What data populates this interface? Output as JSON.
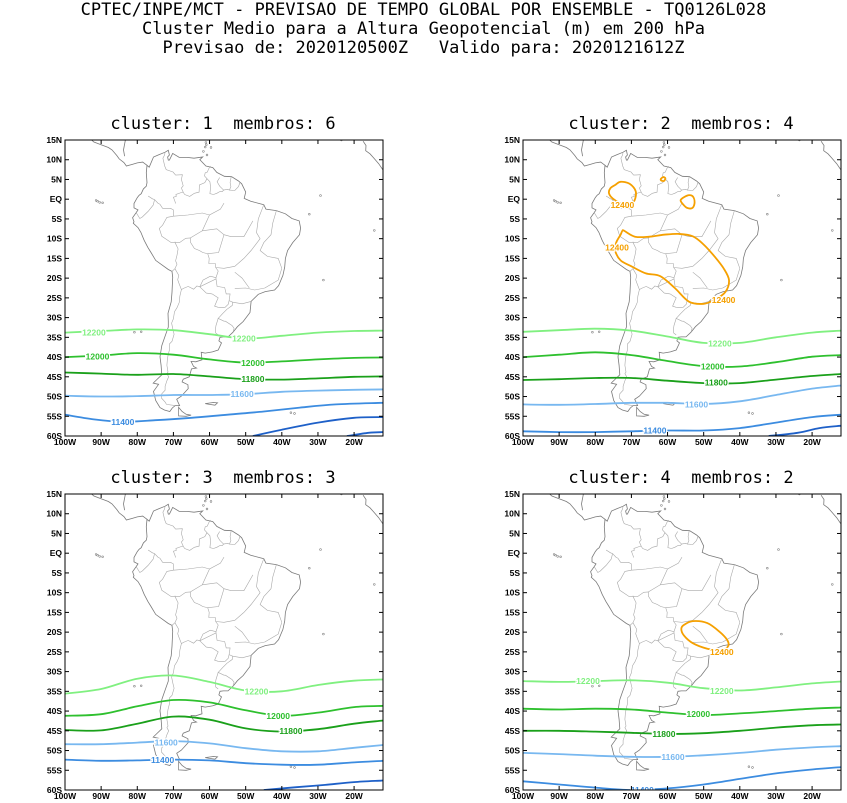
{
  "header": {
    "line1": "CPTEC/INPE/MCT - PREVISAO DE TEMPO GLOBAL POR ENSEMBLE - TQ0126L028",
    "line2": "Cluster Medio para a Altura Geopotencial (m) em 200 hPa",
    "line3": "Previsao de: 2020120500Z   Valido para: 2020121612Z"
  },
  "axes": {
    "lat_labels": [
      "15N",
      "10N",
      "5N",
      "EQ",
      "5S",
      "10S",
      "15S",
      "20S",
      "25S",
      "30S",
      "35S",
      "40S",
      "45S",
      "50S",
      "55S",
      "60S"
    ],
    "lon_labels": [
      "100W",
      "90W",
      "80W",
      "70W",
      "60W",
      "50W",
      "40W",
      "30W",
      "20W"
    ]
  },
  "colors": {
    "c12400": "#f5a000",
    "c12200": "#80f080",
    "c12000": "#2ec02e",
    "c11800": "#1aa01a",
    "c11600": "#78b8f0",
    "c11400": "#3c8ce0",
    "c11200": "#1e60c8",
    "coast": "#7a7a7a"
  },
  "panels": [
    {
      "title": "cluster: 1  membros: 6",
      "labels": [
        {
          "text": "12200",
          "level": "c12200",
          "lon": -92,
          "lat": -33.8
        },
        {
          "text": "12200",
          "level": "c12200",
          "lon": -50.5,
          "lat": -35.3
        },
        {
          "text": "12000",
          "level": "c12000",
          "lon": -91,
          "lat": -39.8
        },
        {
          "text": "12000",
          "level": "c12000",
          "lon": -48,
          "lat": -41.5
        },
        {
          "text": "11800",
          "level": "c11800",
          "lon": -48,
          "lat": -45.6
        },
        {
          "text": "11600",
          "level": "c11600",
          "lon": -51,
          "lat": -49.4
        },
        {
          "text": "11400",
          "level": "c11400",
          "lon": -84,
          "lat": -56.4
        }
      ],
      "contours": [
        {
          "level": "c12200",
          "lon": [
            -100,
            -90,
            -80,
            -70,
            -60,
            -50,
            -40,
            -30,
            -20,
            -12
          ],
          "lat": [
            -33.8,
            -33.4,
            -33.0,
            -33.2,
            -34.2,
            -35.3,
            -34.6,
            -33.8,
            -33.4,
            -33.3
          ]
        },
        {
          "level": "c12000",
          "lon": [
            -100,
            -90,
            -80,
            -70,
            -60,
            -50,
            -40,
            -30,
            -20,
            -12
          ],
          "lat": [
            -40.0,
            -39.6,
            -39.0,
            -39.4,
            -40.6,
            -41.4,
            -41.1,
            -40.6,
            -40.2,
            -40.1
          ]
        },
        {
          "level": "c11800",
          "lon": [
            -100,
            -90,
            -80,
            -70,
            -60,
            -50,
            -40,
            -30,
            -20,
            -12
          ],
          "lat": [
            -43.9,
            -44.2,
            -44.5,
            -44.3,
            -44.9,
            -45.6,
            -45.7,
            -45.4,
            -45.0,
            -44.9
          ]
        },
        {
          "level": "c11600",
          "lon": [
            -100,
            -90,
            -80,
            -70,
            -60,
            -50,
            -40,
            -30,
            -20,
            -12
          ],
          "lat": [
            -49.8,
            -50.0,
            -49.9,
            -49.6,
            -49.6,
            -49.4,
            -48.8,
            -48.5,
            -48.3,
            -48.2
          ]
        },
        {
          "level": "c11400",
          "lon": [
            -100,
            -92,
            -84,
            -75,
            -65,
            -55,
            -45,
            -35,
            -25,
            -12
          ],
          "lat": [
            -54.6,
            -55.8,
            -56.4,
            -56.0,
            -55.4,
            -54.6,
            -53.8,
            -52.8,
            -52.0,
            -51.6
          ]
        },
        {
          "level": "c11200",
          "lon": [
            -48,
            -40,
            -30,
            -20,
            -12
          ],
          "lat": [
            -60,
            -58.4,
            -56.6,
            -55.4,
            -55.2
          ]
        },
        {
          "level": "c11200",
          "lon": [
            -22,
            -16,
            -12
          ],
          "lat": [
            -60,
            -59.2,
            -59.0
          ]
        }
      ]
    },
    {
      "title": "cluster: 2  membros: 4",
      "labels": [
        {
          "text": "12400",
          "level": "c12400",
          "lon": -72.5,
          "lat": -1.5
        },
        {
          "text": "12400",
          "level": "c12400",
          "lon": -74,
          "lat": -12.3
        },
        {
          "text": "12400",
          "level": "c12400",
          "lon": -44.5,
          "lat": -25.6
        },
        {
          "text": "12200",
          "level": "c12200",
          "lon": -45.5,
          "lat": -36.6
        },
        {
          "text": "12000",
          "level": "c12000",
          "lon": -47.5,
          "lat": -42.4
        },
        {
          "text": "11800",
          "level": "c11800",
          "lon": -46.5,
          "lat": -46.4
        },
        {
          "text": "11600",
          "level": "c11600",
          "lon": -52,
          "lat": -52.0
        },
        {
          "text": "11400",
          "level": "c11400",
          "lon": -63.5,
          "lat": -58.6
        }
      ],
      "contours": [
        {
          "level": "c12400",
          "closed": true,
          "lon": [
            -74.5,
            -73,
            -70.5,
            -68.8,
            -69.2,
            -71,
            -73.2,
            -75.2,
            -76.2,
            -75.8
          ],
          "lat": [
            3.6,
            4.4,
            3.9,
            2.0,
            -0.4,
            -1.3,
            -0.9,
            0.2,
            1.5,
            2.8
          ]
        },
        {
          "level": "c12400",
          "closed": true,
          "lon": [
            -55.8,
            -54.3,
            -53.0,
            -52.5,
            -53.1,
            -54.6,
            -55.8,
            -56.4
          ],
          "lat": [
            0.3,
            1.0,
            0.7,
            -0.8,
            -2.2,
            -2.2,
            -1.2,
            -0.3
          ]
        },
        {
          "level": "c12400",
          "closed": true,
          "lon": [
            -61.8,
            -61.2,
            -60.6,
            -61.0,
            -61.8
          ],
          "lat": [
            5.2,
            5.6,
            5.3,
            4.6,
            4.8
          ]
        },
        {
          "level": "c12400",
          "closed": true,
          "lon": [
            -72,
            -69,
            -65,
            -61,
            -57,
            -53,
            -50,
            -47,
            -44.5,
            -43,
            -44,
            -47,
            -50,
            -54,
            -58,
            -62,
            -66,
            -70,
            -73,
            -74.5,
            -74.2,
            -73,
            -72.5
          ],
          "lat": [
            -8,
            -9.5,
            -9.5,
            -9.0,
            -8.8,
            -9.4,
            -11.5,
            -14.5,
            -17.5,
            -20.5,
            -23.5,
            -25.5,
            -26.5,
            -26.0,
            -22.5,
            -19.5,
            -18.8,
            -17.0,
            -15.5,
            -13.0,
            -11.0,
            -9.0,
            -8.0
          ]
        },
        {
          "level": "c12200",
          "lon": [
            -100,
            -90,
            -80,
            -70,
            -60,
            -50,
            -40,
            -30,
            -20,
            -12
          ],
          "lat": [
            -33.6,
            -33.2,
            -32.8,
            -33.3,
            -34.8,
            -36.4,
            -36.4,
            -35.0,
            -33.8,
            -33.3
          ]
        },
        {
          "level": "c12000",
          "lon": [
            -100,
            -90,
            -80,
            -70,
            -60,
            -50,
            -40,
            -30,
            -20,
            -12
          ],
          "lat": [
            -40.0,
            -39.4,
            -38.8,
            -39.5,
            -41.0,
            -42.3,
            -42.4,
            -41.3,
            -39.9,
            -39.5
          ]
        },
        {
          "level": "c11800",
          "lon": [
            -100,
            -90,
            -80,
            -70,
            -60,
            -50,
            -40,
            -30,
            -20,
            -12
          ],
          "lat": [
            -45.8,
            -45.6,
            -45.3,
            -45.3,
            -46.0,
            -46.6,
            -46.6,
            -45.7,
            -44.8,
            -44.3
          ]
        },
        {
          "level": "c11600",
          "lon": [
            -100,
            -90,
            -80,
            -70,
            -60,
            -50,
            -40,
            -30,
            -20,
            -12
          ],
          "lat": [
            -52.0,
            -52.1,
            -51.9,
            -51.6,
            -51.6,
            -51.9,
            -51.2,
            -49.6,
            -48.0,
            -47.2
          ]
        },
        {
          "level": "c11400",
          "lon": [
            -100,
            -90,
            -80,
            -70,
            -60,
            -50,
            -40,
            -30,
            -20,
            -12
          ],
          "lat": [
            -58.8,
            -59.0,
            -59.0,
            -58.8,
            -58.6,
            -58.6,
            -58.0,
            -56.6,
            -55.2,
            -54.6
          ]
        },
        {
          "level": "c11200",
          "lon": [
            -32,
            -24,
            -18,
            -12
          ],
          "lat": [
            -60,
            -59.2,
            -58.0,
            -57.4
          ]
        }
      ]
    },
    {
      "title": "cluster: 3  membros: 3",
      "labels": [
        {
          "text": "12200",
          "level": "c12200",
          "lon": -47,
          "lat": -35.1
        },
        {
          "text": "12000",
          "level": "c12000",
          "lon": -41,
          "lat": -41.2
        },
        {
          "text": "11800",
          "level": "c11800",
          "lon": -37.5,
          "lat": -45.1
        },
        {
          "text": "11600",
          "level": "c11600",
          "lon": -72,
          "lat": -48.0
        },
        {
          "text": "11400",
          "level": "c11400",
          "lon": -73,
          "lat": -52.4
        }
      ],
      "contours": [
        {
          "level": "c12200",
          "lon": [
            -100,
            -90,
            -80,
            -70,
            -60,
            -50,
            -40,
            -30,
            -20,
            -12
          ],
          "lat": [
            -35.6,
            -34.4,
            -31.8,
            -31.0,
            -32.6,
            -34.8,
            -35.0,
            -33.4,
            -32.3,
            -32.0
          ]
        },
        {
          "level": "c12000",
          "lon": [
            -100,
            -90,
            -80,
            -70,
            -60,
            -50,
            -40,
            -30,
            -20,
            -12
          ],
          "lat": [
            -41.2,
            -40.8,
            -38.8,
            -37.2,
            -37.8,
            -39.8,
            -41.2,
            -40.4,
            -39.0,
            -38.7
          ]
        },
        {
          "level": "c11800",
          "lon": [
            -100,
            -90,
            -80,
            -70,
            -60,
            -50,
            -40,
            -30,
            -20,
            -12
          ],
          "lat": [
            -44.8,
            -44.9,
            -43.2,
            -41.4,
            -42.2,
            -44.4,
            -45.2,
            -44.6,
            -43.2,
            -42.4
          ]
        },
        {
          "level": "c11600",
          "lon": [
            -100,
            -90,
            -80,
            -70,
            -60,
            -50,
            -40,
            -30,
            -20,
            -12
          ],
          "lat": [
            -48.4,
            -48.4,
            -48.0,
            -47.6,
            -48.2,
            -49.4,
            -50.2,
            -50.2,
            -49.3,
            -48.6
          ]
        },
        {
          "level": "c11400",
          "lon": [
            -100,
            -90,
            -80,
            -70,
            -60,
            -50,
            -40,
            -30,
            -20,
            -12
          ],
          "lat": [
            -52.3,
            -52.6,
            -52.5,
            -52.3,
            -52.5,
            -53.2,
            -53.6,
            -53.6,
            -53.0,
            -52.6
          ]
        },
        {
          "level": "c11200",
          "lon": [
            -45,
            -36,
            -28,
            -20,
            -12
          ],
          "lat": [
            -60,
            -59.3,
            -58.7,
            -58.0,
            -57.6
          ]
        }
      ]
    },
    {
      "title": "cluster: 4  membros: 2",
      "labels": [
        {
          "text": "12400",
          "level": "c12400",
          "lon": -45,
          "lat": -25.0
        },
        {
          "text": "12200",
          "level": "c12200",
          "lon": -82,
          "lat": -32.4
        },
        {
          "text": "12200",
          "level": "c12200",
          "lon": -45,
          "lat": -34.9
        },
        {
          "text": "12000",
          "level": "c12000",
          "lon": -51.5,
          "lat": -40.7
        },
        {
          "text": "11800",
          "level": "c11800",
          "lon": -61,
          "lat": -45.8
        },
        {
          "text": "11600",
          "level": "c11600",
          "lon": -58.5,
          "lat": -51.6
        },
        {
          "text": "11400",
          "level": "c11400",
          "lon": -67,
          "lat": -60.0
        }
      ],
      "contours": [
        {
          "level": "c12400",
          "closed": true,
          "lon": [
            -55.5,
            -53,
            -49,
            -45.5,
            -43.5,
            -43.2,
            -45,
            -49,
            -53,
            -55.5,
            -56.2
          ],
          "lat": [
            -18.2,
            -17.2,
            -17.7,
            -20.0,
            -22.0,
            -23.5,
            -24.6,
            -24.2,
            -22.8,
            -20.8,
            -19.2
          ]
        },
        {
          "level": "c12200",
          "lon": [
            -100,
            -90,
            -80,
            -70,
            -60,
            -50,
            -40,
            -30,
            -20,
            -12
          ],
          "lat": [
            -32.4,
            -32.6,
            -32.4,
            -32.2,
            -32.8,
            -34.2,
            -34.8,
            -34.0,
            -33.0,
            -32.5
          ]
        },
        {
          "level": "c12000",
          "lon": [
            -100,
            -90,
            -80,
            -70,
            -60,
            -50,
            -40,
            -30,
            -20,
            -12
          ],
          "lat": [
            -39.4,
            -39.6,
            -39.4,
            -39.6,
            -40.4,
            -41.0,
            -40.6,
            -40.0,
            -39.4,
            -39.1
          ]
        },
        {
          "level": "c11800",
          "lon": [
            -100,
            -90,
            -80,
            -70,
            -60,
            -50,
            -40,
            -30,
            -20,
            -12
          ],
          "lat": [
            -45.0,
            -45.0,
            -45.2,
            -45.5,
            -45.8,
            -45.6,
            -45.0,
            -44.2,
            -43.6,
            -43.4
          ]
        },
        {
          "level": "c11600",
          "lon": [
            -100,
            -90,
            -80,
            -70,
            -60,
            -50,
            -40,
            -30,
            -20,
            -12
          ],
          "lat": [
            -50.6,
            -50.9,
            -51.3,
            -51.6,
            -51.6,
            -51.2,
            -50.6,
            -49.8,
            -49.2,
            -48.9
          ]
        },
        {
          "level": "c11400",
          "lon": [
            -100,
            -90,
            -80,
            -70,
            -60,
            -50,
            -40,
            -30,
            -20,
            -12
          ],
          "lat": [
            -57.8,
            -58.6,
            -59.4,
            -60,
            -59.6,
            -58.6,
            -57.2,
            -55.8,
            -54.8,
            -54.2
          ]
        }
      ]
    }
  ]
}
